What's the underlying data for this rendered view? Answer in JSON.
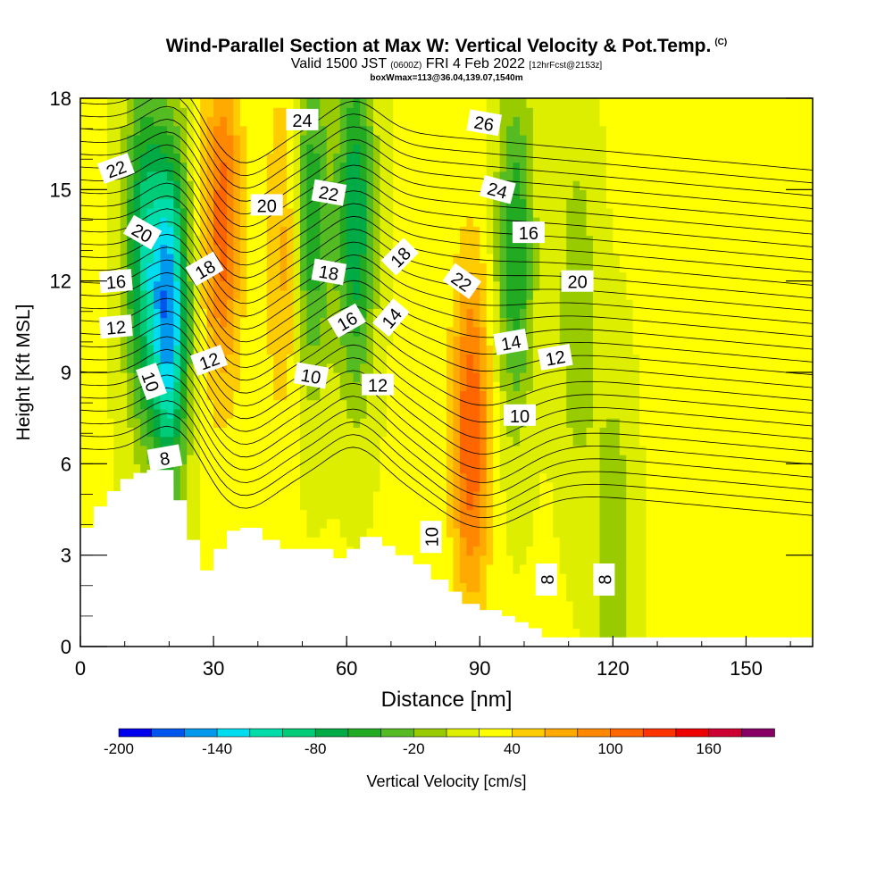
{
  "title": {
    "main": "Wind-Parallel Section at Max W: Vertical Velocity & Pot.Temp.",
    "copyright": "(C)",
    "valid_prefix": "Valid 1500 JST",
    "valid_utc": "(0600Z)",
    "valid_date": "FRI 4 Feb 2022",
    "forecast": "[12hrFcst@2153z]",
    "box_info": "boxWmax=113@36.04,139.07,1540m"
  },
  "chart_data": {
    "type": "heatmap",
    "xlabel": "Distance [nm]",
    "ylabel": "Height [Kft MSL]",
    "xlim": [
      0,
      165
    ],
    "ylim": [
      0,
      18
    ],
    "x_ticks": [
      0,
      30,
      60,
      90,
      120,
      150
    ],
    "y_ticks": [
      0,
      3,
      6,
      9,
      12,
      15,
      18
    ],
    "colorbar": {
      "label": "Vertical Velocity [cm/s]",
      "tick_labels": [
        "-200",
        "-140",
        "-80",
        "-20",
        "40",
        "100",
        "160"
      ],
      "tick_values": [
        -200,
        -140,
        -80,
        -20,
        40,
        100,
        160
      ],
      "bounds": [
        -200,
        -180,
        -160,
        -140,
        -120,
        -100,
        -80,
        -60,
        -40,
        -20,
        0,
        20,
        40,
        60,
        80,
        100,
        120,
        140,
        160,
        180,
        200
      ],
      "colors": [
        "#0000ee",
        "#0055ee",
        "#0099ee",
        "#00ddee",
        "#00ddaa",
        "#00cc77",
        "#00aa44",
        "#22aa22",
        "#55bb22",
        "#99cc00",
        "#ddee00",
        "#ffff00",
        "#ffcc00",
        "#ffaa00",
        "#ff8800",
        "#ff6600",
        "#ff3300",
        "#ee0000",
        "#cc0033",
        "#880066"
      ]
    },
    "w_features": [
      {
        "x": 20,
        "y": 11,
        "value": -150
      },
      {
        "x": 14,
        "y": 13,
        "value": -80
      },
      {
        "x": 32,
        "y": 14,
        "value": 110
      },
      {
        "x": 46,
        "y": 13,
        "value": 70
      },
      {
        "x": 52,
        "y": 14,
        "value": -60
      },
      {
        "x": 62,
        "y": 14,
        "value": -80
      },
      {
        "x": 88,
        "y": 7,
        "value": 120
      },
      {
        "x": 98,
        "y": 13,
        "value": -60
      },
      {
        "x": 112,
        "y": 11,
        "value": -20
      },
      {
        "x": 120,
        "y": 3,
        "value": -20
      },
      {
        "x": 142,
        "y": 12,
        "value": 40
      }
    ],
    "theta_contour_labels": [
      "22",
      "20",
      "16",
      "12",
      "10",
      "8",
      "18",
      "12",
      "20",
      "24",
      "22",
      "18",
      "16",
      "10",
      "12",
      "18",
      "14",
      "26",
      "24",
      "22",
      "16",
      "20",
      "14",
      "12",
      "10",
      "10",
      "8",
      "8"
    ],
    "terrain": [
      [
        0,
        3.9
      ],
      [
        3,
        3.9
      ],
      [
        3,
        4.6
      ],
      [
        6,
        4.6
      ],
      [
        6,
        5.1
      ],
      [
        9,
        5.1
      ],
      [
        9,
        5.5
      ],
      [
        12,
        5.5
      ],
      [
        12,
        5.7
      ],
      [
        15,
        5.7
      ],
      [
        15,
        5.8
      ],
      [
        21,
        5.8
      ],
      [
        21,
        4.8
      ],
      [
        24,
        4.8
      ],
      [
        24,
        3.5
      ],
      [
        27,
        3.5
      ],
      [
        27,
        2.5
      ],
      [
        30,
        2.5
      ],
      [
        30,
        3.2
      ],
      [
        33,
        3.2
      ],
      [
        33,
        3.8
      ],
      [
        36,
        3.8
      ],
      [
        36,
        3.9
      ],
      [
        41,
        3.9
      ],
      [
        41,
        3.5
      ],
      [
        45,
        3.5
      ],
      [
        45,
        3.2
      ],
      [
        50,
        3.2
      ],
      [
        50,
        3.2
      ],
      [
        57,
        3.2
      ],
      [
        57,
        2.9
      ],
      [
        60,
        2.9
      ],
      [
        60,
        3.2
      ],
      [
        63,
        3.2
      ],
      [
        63,
        3.6
      ],
      [
        68,
        3.6
      ],
      [
        68,
        3.3
      ],
      [
        71,
        3.3
      ],
      [
        71,
        3.0
      ],
      [
        75,
        3.0
      ],
      [
        75,
        2.7
      ],
      [
        79,
        2.7
      ],
      [
        79,
        2.2
      ],
      [
        83,
        2.2
      ],
      [
        83,
        1.8
      ],
      [
        86,
        1.8
      ],
      [
        86,
        1.4
      ],
      [
        90,
        1.4
      ],
      [
        90,
        1.2
      ],
      [
        95,
        1.2
      ],
      [
        95,
        1.0
      ],
      [
        98,
        1.0
      ],
      [
        98,
        0.8
      ],
      [
        101,
        0.8
      ],
      [
        101,
        0.6
      ],
      [
        104,
        0.6
      ],
      [
        104,
        0.3
      ],
      [
        165,
        0.3
      ],
      [
        165,
        0
      ]
    ]
  }
}
